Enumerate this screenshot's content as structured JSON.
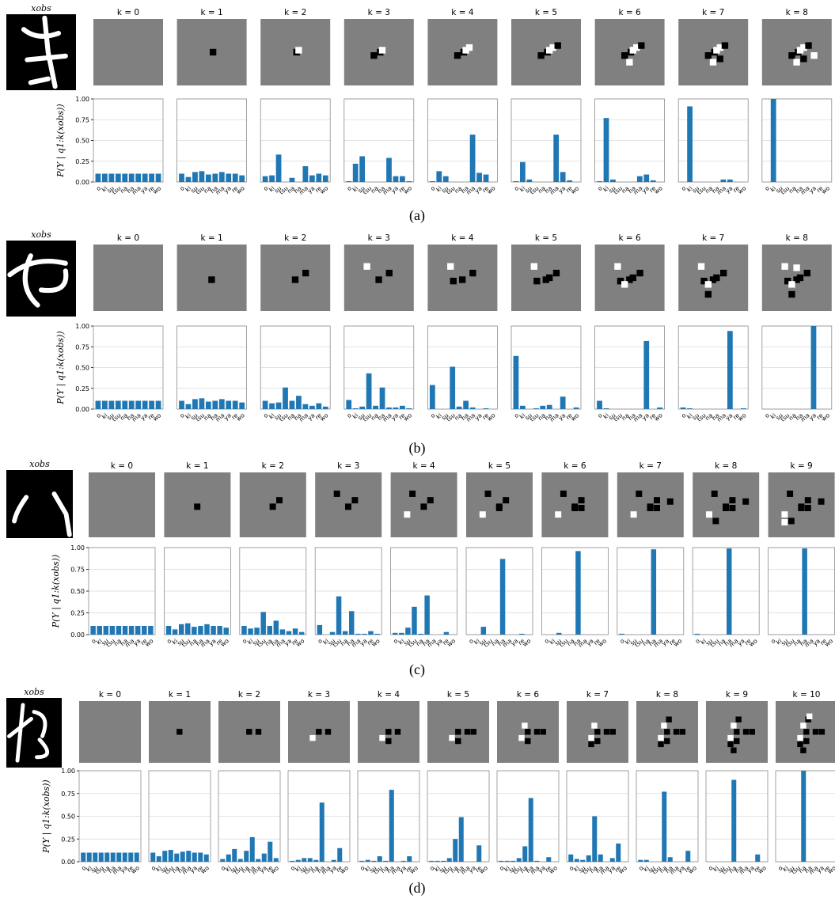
{
  "categories": [
    "o",
    "ki",
    "su",
    "tsu",
    "na",
    "ha",
    "ma",
    "ya",
    "re",
    "wo"
  ],
  "y_ticks": [
    "0.00",
    "0.25",
    "0.50",
    "0.75",
    "1.00"
  ],
  "y_axis_label": "P(Y | q1:k(xobs))",
  "obs_label": "xobs",
  "colors": {
    "bar": "#1f77b4",
    "mask": "#808080",
    "grid": "#d9d9d9",
    "frame": "#8c8c8c"
  },
  "chart_data": [
    {
      "type": "bar",
      "caption": "(a)",
      "panel_titles": [
        "k = 0",
        "k = 1",
        "k = 2",
        "k = 3",
        "k = 4",
        "k = 5",
        "k = 6",
        "k = 7",
        "k = 8"
      ],
      "ylim": [
        0,
        1
      ],
      "series": [
        [
          0.1,
          0.1,
          0.1,
          0.1,
          0.1,
          0.1,
          0.1,
          0.1,
          0.1,
          0.1
        ],
        [
          0.1,
          0.06,
          0.12,
          0.13,
          0.09,
          0.1,
          0.12,
          0.1,
          0.1,
          0.08
        ],
        [
          0.07,
          0.08,
          0.33,
          0.0,
          0.05,
          0.0,
          0.19,
          0.08,
          0.1,
          0.08
        ],
        [
          0.01,
          0.22,
          0.31,
          0.0,
          0.0,
          0.0,
          0.29,
          0.07,
          0.07,
          0.01
        ],
        [
          0.01,
          0.13,
          0.07,
          0.0,
          0.0,
          0.0,
          0.57,
          0.11,
          0.09,
          0.0
        ],
        [
          0.01,
          0.24,
          0.03,
          0.0,
          0.0,
          0.0,
          0.57,
          0.12,
          0.02,
          0.0
        ],
        [
          0.01,
          0.77,
          0.03,
          0.0,
          0.0,
          0.0,
          0.07,
          0.09,
          0.02,
          0.0
        ],
        [
          0.0,
          0.91,
          0.0,
          0.0,
          0.0,
          0.0,
          0.03,
          0.03,
          0.0,
          0.0
        ],
        [
          0.0,
          1.0,
          0.0,
          0.0,
          0.0,
          0.0,
          0.0,
          0.0,
          0.0,
          0.0
        ]
      ]
    },
    {
      "type": "bar",
      "caption": "(b)",
      "panel_titles": [
        "k = 0",
        "k = 1",
        "k = 2",
        "k = 3",
        "k = 4",
        "k = 5",
        "k = 6",
        "k = 7",
        "k = 8"
      ],
      "ylim": [
        0,
        1
      ],
      "series": [
        [
          0.1,
          0.1,
          0.1,
          0.1,
          0.1,
          0.1,
          0.1,
          0.1,
          0.1,
          0.1
        ],
        [
          0.1,
          0.06,
          0.12,
          0.13,
          0.09,
          0.1,
          0.12,
          0.1,
          0.1,
          0.08
        ],
        [
          0.1,
          0.07,
          0.08,
          0.26,
          0.1,
          0.16,
          0.06,
          0.04,
          0.07,
          0.03
        ],
        [
          0.11,
          0.01,
          0.03,
          0.43,
          0.04,
          0.26,
          0.02,
          0.02,
          0.04,
          0.01
        ],
        [
          0.29,
          0.0,
          0.0,
          0.51,
          0.03,
          0.1,
          0.02,
          0.0,
          0.01,
          0.0
        ],
        [
          0.64,
          0.04,
          0.0,
          0.01,
          0.04,
          0.05,
          0.0,
          0.15,
          0.0,
          0.02
        ],
        [
          0.1,
          0.01,
          0.0,
          0.0,
          0.0,
          0.0,
          0.0,
          0.82,
          0.0,
          0.02
        ],
        [
          0.02,
          0.01,
          0.0,
          0.0,
          0.0,
          0.0,
          0.0,
          0.94,
          0.0,
          0.01
        ],
        [
          0.0,
          0.0,
          0.0,
          0.0,
          0.0,
          0.0,
          0.0,
          1.0,
          0.0,
          0.0
        ]
      ]
    },
    {
      "type": "bar",
      "caption": "(c)",
      "panel_titles": [
        "k = 0",
        "k = 1",
        "k = 2",
        "k = 3",
        "k = 4",
        "k = 5",
        "k = 6",
        "k = 7",
        "k = 8",
        "k = 9"
      ],
      "ylim": [
        0,
        1
      ],
      "series": [
        [
          0.1,
          0.1,
          0.1,
          0.1,
          0.1,
          0.1,
          0.1,
          0.1,
          0.1,
          0.1
        ],
        [
          0.1,
          0.06,
          0.12,
          0.13,
          0.09,
          0.1,
          0.12,
          0.1,
          0.1,
          0.08
        ],
        [
          0.1,
          0.07,
          0.08,
          0.26,
          0.1,
          0.16,
          0.06,
          0.04,
          0.07,
          0.03
        ],
        [
          0.11,
          0.0,
          0.03,
          0.44,
          0.04,
          0.27,
          0.01,
          0.01,
          0.04,
          0.01
        ],
        [
          0.02,
          0.02,
          0.08,
          0.32,
          0.01,
          0.45,
          0.0,
          0.0,
          0.03,
          0.0
        ],
        [
          0.0,
          0.0,
          0.09,
          0.0,
          0.0,
          0.87,
          0.0,
          0.0,
          0.01,
          0.0
        ],
        [
          0.0,
          0.0,
          0.02,
          0.0,
          0.0,
          0.96,
          0.0,
          0.0,
          0.0,
          0.0
        ],
        [
          0.01,
          0.0,
          0.0,
          0.0,
          0.0,
          0.98,
          0.0,
          0.0,
          0.0,
          0.0
        ],
        [
          0.01,
          0.0,
          0.0,
          0.0,
          0.0,
          0.99,
          0.0,
          0.0,
          0.0,
          0.0
        ],
        [
          0.0,
          0.0,
          0.0,
          0.0,
          0.0,
          0.99,
          0.0,
          0.0,
          0.0,
          0.0
        ]
      ]
    },
    {
      "type": "bar",
      "caption": "(d)",
      "panel_titles": [
        "k = 0",
        "k = 1",
        "k = 2",
        "k = 3",
        "k = 4",
        "k = 5",
        "k = 6",
        "k = 7",
        "k = 8",
        "k = 9",
        "k = 10"
      ],
      "ylim": [
        0,
        1
      ],
      "series": [
        [
          0.1,
          0.1,
          0.1,
          0.1,
          0.1,
          0.1,
          0.1,
          0.1,
          0.1,
          0.1
        ],
        [
          0.1,
          0.06,
          0.12,
          0.13,
          0.09,
          0.11,
          0.12,
          0.1,
          0.1,
          0.08
        ],
        [
          0.03,
          0.08,
          0.14,
          0.03,
          0.12,
          0.27,
          0.03,
          0.09,
          0.22,
          0.04
        ],
        [
          0.01,
          0.02,
          0.04,
          0.04,
          0.02,
          0.65,
          0.0,
          0.02,
          0.15,
          0.0
        ],
        [
          0.01,
          0.02,
          0.01,
          0.06,
          0.01,
          0.79,
          0.0,
          0.01,
          0.06,
          0.0
        ],
        [
          0.01,
          0.01,
          0.01,
          0.04,
          0.25,
          0.49,
          0.0,
          0.0,
          0.18,
          0.0
        ],
        [
          0.01,
          0.01,
          0.01,
          0.04,
          0.17,
          0.7,
          0.01,
          0.0,
          0.05,
          0.0
        ],
        [
          0.08,
          0.03,
          0.02,
          0.07,
          0.5,
          0.08,
          0.0,
          0.04,
          0.2,
          0.0
        ],
        [
          0.02,
          0.02,
          0.0,
          0.0,
          0.77,
          0.05,
          0.0,
          0.0,
          0.12,
          0.0
        ],
        [
          0.0,
          0.0,
          0.0,
          0.0,
          0.9,
          0.0,
          0.0,
          0.0,
          0.08,
          0.0
        ],
        [
          0.0,
          0.0,
          0.0,
          0.0,
          1.0,
          0.0,
          0.0,
          0.0,
          0.0,
          0.0
        ]
      ]
    }
  ]
}
